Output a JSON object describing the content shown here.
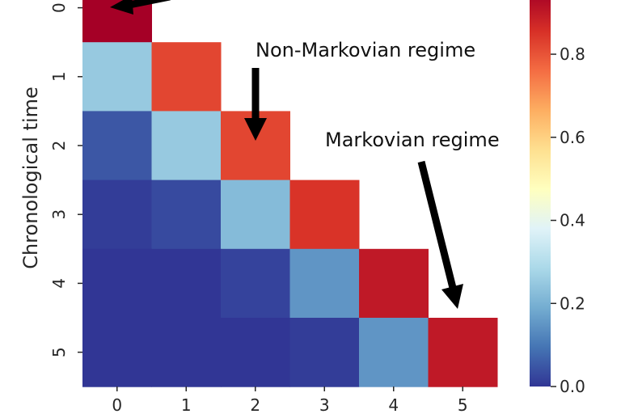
{
  "chart_data": {
    "type": "heatmap",
    "ylabel": "Chronological time",
    "xlabel": "",
    "x_categories": [
      "0",
      "1",
      "2",
      "3",
      "4",
      "5"
    ],
    "y_categories": [
      "0",
      "1",
      "2",
      "3",
      "4",
      "5"
    ],
    "values": [
      [
        0.95,
        null,
        null,
        null,
        null,
        null
      ],
      [
        0.25,
        0.82,
        null,
        null,
        null,
        null
      ],
      [
        0.05,
        0.25,
        0.82,
        null,
        null,
        null
      ],
      [
        0.01,
        0.03,
        0.22,
        0.85,
        null,
        null
      ],
      [
        0.0,
        0.0,
        0.02,
        0.15,
        0.9,
        null
      ],
      [
        0.0,
        0.0,
        0.0,
        0.01,
        0.15,
        0.9
      ]
    ],
    "colorscale": "RdYlBu_r",
    "colorbar": {
      "range": [
        0.0,
        0.95
      ],
      "ticks": [
        0.0,
        0.2,
        0.4,
        0.6,
        0.8
      ],
      "tick_labels": [
        "0.0",
        "0.2",
        "0.4",
        "0.6",
        "0.8"
      ]
    },
    "annotations": [
      {
        "text": "Non-Markovian regime",
        "points_to": {
          "x": "2",
          "y": "2"
        }
      },
      {
        "text": "Markovian regime",
        "points_to": {
          "x": "5",
          "y": "5"
        }
      }
    ]
  }
}
